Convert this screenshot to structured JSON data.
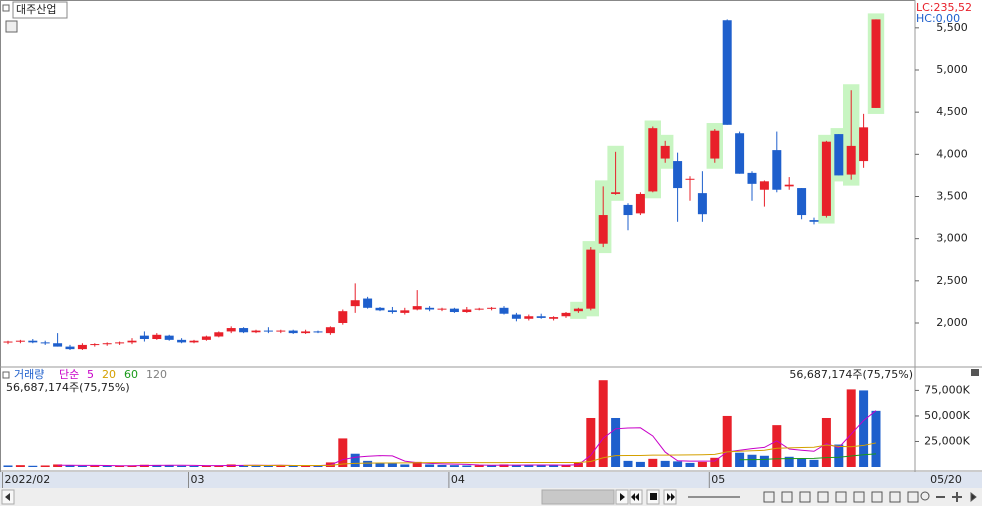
{
  "chart_data": {
    "type": "candlestick",
    "title": "대주산업",
    "lc_label": "LC:235,52",
    "hc_label": "HC:0,00",
    "last_date": "05/20",
    "categories": [
      "2022/02",
      null,
      null,
      null,
      null,
      null,
      null,
      null,
      null,
      null,
      null,
      null,
      null,
      null,
      null,
      "03",
      null,
      null,
      null,
      null,
      null,
      null,
      null,
      null,
      null,
      null,
      null,
      null,
      null,
      null,
      null,
      null,
      null,
      null,
      null,
      null,
      "04",
      null,
      null,
      null,
      null,
      null,
      null,
      null,
      null,
      null,
      null,
      null,
      null,
      null,
      null,
      null,
      null,
      null,
      null,
      null,
      null,
      "05",
      null,
      null,
      null,
      null,
      null,
      null,
      null,
      null,
      null,
      null,
      null,
      null,
      null
    ],
    "open": [
      1770,
      1780,
      1790,
      1770,
      1760,
      1720,
      1690,
      1740,
      1750,
      1760,
      1770,
      1850,
      1810,
      1850,
      1800,
      1770,
      1800,
      1840,
      1900,
      1940,
      1890,
      1910,
      1900,
      1910,
      1880,
      1900,
      1880,
      2000,
      2200,
      2290,
      2180,
      2150,
      2120,
      2160,
      2180,
      2160,
      2170,
      2130,
      2160,
      2170,
      2180,
      2100,
      2050,
      2080,
      2050,
      2080,
      2140,
      2170,
      2940,
      3530,
      3400,
      3300,
      3560,
      3950,
      3920,
      3700,
      3540,
      3950,
      5590,
      4250,
      3780,
      3580,
      4050,
      3620,
      3600,
      3220,
      3270,
      4240,
      3760,
      3920,
      4550
    ],
    "high": [
      1790,
      1800,
      1810,
      1790,
      1880,
      1740,
      1760,
      1760,
      1770,
      1780,
      1820,
      1900,
      1880,
      1860,
      1820,
      1800,
      1850,
      1900,
      1960,
      1950,
      1920,
      1950,
      1920,
      1920,
      1920,
      1910,
      1960,
      2160,
      2470,
      2310,
      2190,
      2190,
      2180,
      2390,
      2200,
      2180,
      2180,
      2190,
      2180,
      2190,
      2200,
      2120,
      2100,
      2110,
      2080,
      2130,
      2180,
      2900,
      3620,
      4030,
      3420,
      3550,
      4330,
      4160,
      4020,
      3740,
      3800,
      4300,
      5600,
      4270,
      3800,
      3690,
      4270,
      3730,
      3600,
      3250,
      4160,
      4240,
      4760,
      4480,
      5600
    ],
    "low": [
      1750,
      1760,
      1760,
      1740,
      1720,
      1680,
      1680,
      1720,
      1730,
      1740,
      1750,
      1780,
      1800,
      1790,
      1760,
      1760,
      1790,
      1830,
      1880,
      1880,
      1880,
      1880,
      1880,
      1870,
      1870,
      1880,
      1860,
      1980,
      2120,
      2170,
      2140,
      2110,
      2100,
      2150,
      2140,
      2140,
      2120,
      2120,
      2150,
      2150,
      2100,
      2020,
      2030,
      2050,
      2030,
      2060,
      2120,
      2150,
      2900,
      3520,
      3100,
      3280,
      3550,
      3900,
      3200,
      3450,
      3200,
      3900,
      4350,
      3770,
      3450,
      3380,
      3550,
      3580,
      3230,
      3170,
      3250,
      3750,
      3700,
      3840,
      4550
    ],
    "close": [
      1780,
      1790,
      1770,
      1760,
      1720,
      1690,
      1740,
      1750,
      1760,
      1770,
      1790,
      1810,
      1860,
      1800,
      1770,
      1790,
      1840,
      1890,
      1940,
      1890,
      1910,
      1900,
      1910,
      1880,
      1900,
      1890,
      1950,
      2140,
      2270,
      2180,
      2150,
      2130,
      2150,
      2200,
      2160,
      2170,
      2130,
      2160,
      2170,
      2180,
      2110,
      2050,
      2080,
      2060,
      2070,
      2120,
      2170,
      2870,
      3280,
      3550,
      3280,
      3530,
      4310,
      4100,
      3600,
      3710,
      3290,
      4280,
      4350,
      3770,
      3650,
      3680,
      3580,
      3640,
      3280,
      3200,
      4150,
      3750,
      4100,
      4320,
      5600
    ],
    "highlighted": [
      false,
      false,
      false,
      false,
      false,
      false,
      false,
      false,
      false,
      false,
      false,
      false,
      false,
      false,
      false,
      false,
      false,
      false,
      false,
      false,
      false,
      false,
      false,
      false,
      false,
      false,
      false,
      false,
      false,
      false,
      false,
      false,
      false,
      false,
      false,
      false,
      false,
      false,
      false,
      false,
      false,
      false,
      false,
      false,
      false,
      false,
      true,
      true,
      true,
      true,
      false,
      false,
      true,
      true,
      false,
      false,
      false,
      true,
      false,
      false,
      false,
      false,
      false,
      false,
      false,
      false,
      true,
      true,
      true,
      false,
      true
    ],
    "up_color": "#e8202a",
    "down_color": "#1e5fcc",
    "highlight_color": "#c8f5c2",
    "ylim": [
      1490,
      5830
    ],
    "yticks": [
      {
        "value": 2000,
        "label": "2,000"
      },
      {
        "value": 2500,
        "label": "2,500"
      },
      {
        "value": 3000,
        "label": "3,000"
      },
      {
        "value": 3500,
        "label": "3,500"
      },
      {
        "value": 4000,
        "label": "4,000"
      },
      {
        "value": 4500,
        "label": "4,500"
      },
      {
        "value": 5000,
        "label": "5,000"
      },
      {
        "value": 5500,
        "label": "5,500"
      }
    ],
    "volume": {
      "label": "거래량",
      "ma_label": "단순",
      "summary": "56,687,174주(75,75%)",
      "values": [
        1500,
        1800,
        1200,
        1500,
        2500,
        1600,
        1200,
        1300,
        1000,
        1100,
        1500,
        2200,
        2000,
        1500,
        1200,
        1000,
        1300,
        1500,
        2500,
        1800,
        1200,
        1000,
        1900,
        1200,
        1300,
        1100,
        4500,
        28000,
        13000,
        6000,
        4000,
        3500,
        2500,
        5000,
        2500,
        2000,
        1800,
        1500,
        1700,
        1600,
        2500,
        2000,
        1800,
        1700,
        1600,
        2000,
        4000,
        48000,
        85000,
        48000,
        6000,
        5000,
        8000,
        6000,
        5500,
        4000,
        5000,
        9000,
        50000,
        14000,
        12000,
        11000,
        41000,
        10000,
        8000,
        7000,
        48000,
        22000,
        76000,
        75000,
        55000
      ],
      "ylim": [
        0,
        95000
      ],
      "yticks": [
        {
          "value": 25000,
          "label": "25,000K"
        },
        {
          "value": 50000,
          "label": "50,000K"
        },
        {
          "value": 75000,
          "label": "75,000K"
        }
      ],
      "ma": [
        {
          "name": "5",
          "color": "#c800c8"
        },
        {
          "name": "20",
          "color": "#d4a000"
        },
        {
          "name": "60",
          "color": "#1a9a1a"
        },
        {
          "name": "120",
          "color": "#808080"
        }
      ]
    }
  }
}
